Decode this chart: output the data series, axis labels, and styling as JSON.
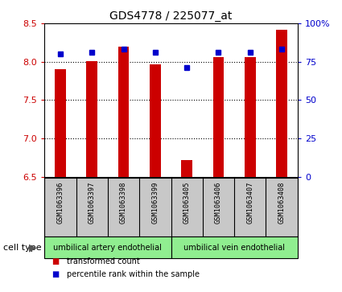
{
  "title": "GDS4778 / 225077_at",
  "samples": [
    "GSM1063396",
    "GSM1063397",
    "GSM1063398",
    "GSM1063399",
    "GSM1063405",
    "GSM1063406",
    "GSM1063407",
    "GSM1063408"
  ],
  "transformed_counts": [
    7.9,
    8.01,
    8.2,
    7.96,
    6.72,
    8.06,
    8.06,
    8.42
  ],
  "percentile_ranks": [
    80,
    81,
    83,
    81,
    71,
    81,
    81,
    83
  ],
  "ylim_left": [
    6.5,
    8.5
  ],
  "ylim_right": [
    0,
    100
  ],
  "yticks_left": [
    6.5,
    7.0,
    7.5,
    8.0,
    8.5
  ],
  "yticks_right": [
    0,
    25,
    50,
    75,
    100
  ],
  "bar_color": "#cc0000",
  "dot_color": "#0000cc",
  "bar_width": 0.35,
  "cell_type_groups": [
    {
      "label": "umbilical artery endothelial",
      "start": 0,
      "end": 3,
      "color": "#90ee90"
    },
    {
      "label": "umbilical vein endothelial",
      "start": 4,
      "end": 7,
      "color": "#90ee90"
    }
  ],
  "cell_type_label": "cell type",
  "legend_items": [
    {
      "label": "transformed count",
      "color": "#cc0000"
    },
    {
      "label": "percentile rank within the sample",
      "color": "#0000cc"
    }
  ],
  "bg_color": "#ffffff",
  "tick_label_color_left": "#cc0000",
  "tick_label_color_right": "#0000cc",
  "base": 6.5,
  "grid_lines": [
    7.0,
    7.5,
    8.0
  ],
  "sample_box_color": "#c8c8c8",
  "sample_box_edge": "#000000"
}
